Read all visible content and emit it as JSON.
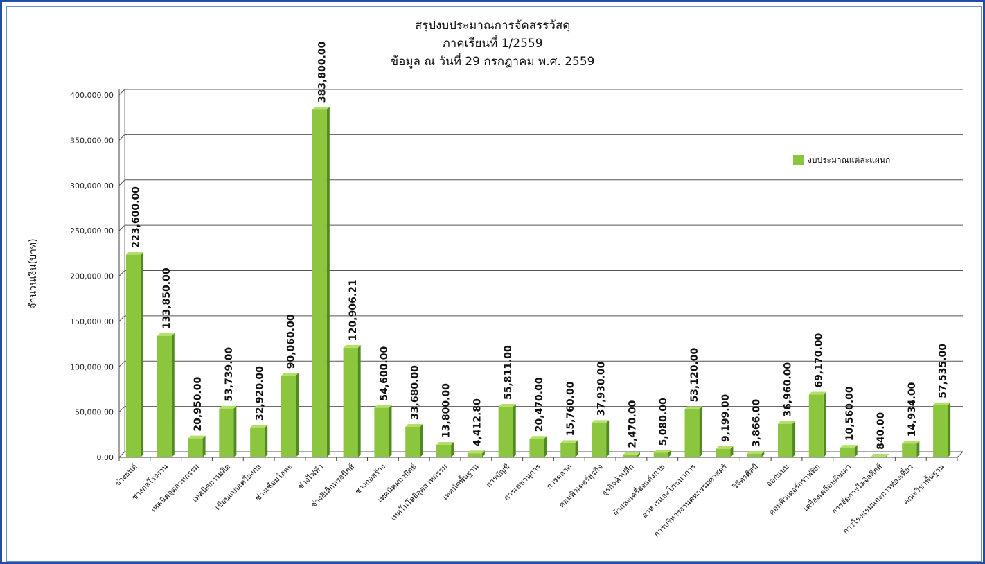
{
  "chart_data": {
    "type": "bar",
    "title": [
      "สรุปงบประมาณการจัดสรรวัสดุ",
      "ภาคเรียนที่ 1/2559",
      "ข้อมูล ณ วันที่ 29 กรกฎาคม  พ.ศ. 2559"
    ],
    "ylabel": "จำนวนเงิน(บาท)",
    "xlabel": "",
    "ylim": [
      0,
      400000
    ],
    "yticks": [
      "0.00",
      "50,000.00",
      "100,000.00",
      "150,000.00",
      "200,000.00",
      "250,000.00",
      "300,000.00",
      "350,000.00",
      "400,000.00"
    ],
    "grid": true,
    "legend_position": "top-right",
    "series": [
      {
        "name": "งบประมาณแต่ละแผนก",
        "color": "#8cc63f",
        "values": [
          223600,
          133850,
          20950,
          53739,
          32920,
          90060,
          383800,
          120906.21,
          54600,
          33680,
          13800,
          4412.8,
          55811,
          20470,
          15760,
          37930,
          2470,
          5080,
          53120,
          9199,
          3866,
          36960,
          69170,
          10560,
          840,
          14934,
          57535
        ],
        "labels": [
          "223,600.00",
          "133,850.00",
          "20,950.00",
          "53,739.00",
          "32,920.00",
          "90,060.00",
          "383,800.00",
          "120,906.21",
          "54,600.00",
          "33,680.00",
          "13,800.00",
          "4,412.80",
          "55,811.00",
          "20,470.00",
          "15,760.00",
          "37,930.00",
          "2,470.00",
          "5,080.00",
          "53,120.00",
          "9,199.00",
          "3,866.00",
          "36,960.00",
          "69,170.00",
          "10,560.00",
          "840.00",
          "14,934.00",
          "57,535.00"
        ]
      }
    ],
    "categories": [
      "ช่างยนต์",
      "ช่างกลโรงงาน",
      "เทคนิคอุตสาหกรรม",
      "เทคนิคการผลิต",
      "เขียนแบบเครื่องกล",
      "ช่างเชื่อมโลหะ",
      "ช่างไฟฟ้า",
      "ช่างอิเล็กทรอนิกส์",
      "ช่างก่อสร้าง",
      "เทคนิคสถาปัตย์",
      "เทคโนโลยีอุตสาหกรรม",
      "เทคนิคพื้นฐาน",
      "การบัญชี",
      "การเลขานุการ",
      "การตลาด",
      "คอมพิวเตอร์ธุรกิจ",
      "ธุรกิจค้าปลีก",
      "ผ้าและเครื่องแต่งกาย",
      "อาหารและโภชนาการ",
      "การบริหารงานคหกรรมศาสตร์",
      "วิจิตรศิลป์",
      "ออกแบบ",
      "คอมพิวเตอร์กราฟฟิก",
      "เครื่องเคลือบดินเผา",
      "การจัดการโลจิสติกส์",
      "การโรงแรมและการท่องเที่ยว",
      "คณะวิชาพื้นฐาน"
    ]
  }
}
